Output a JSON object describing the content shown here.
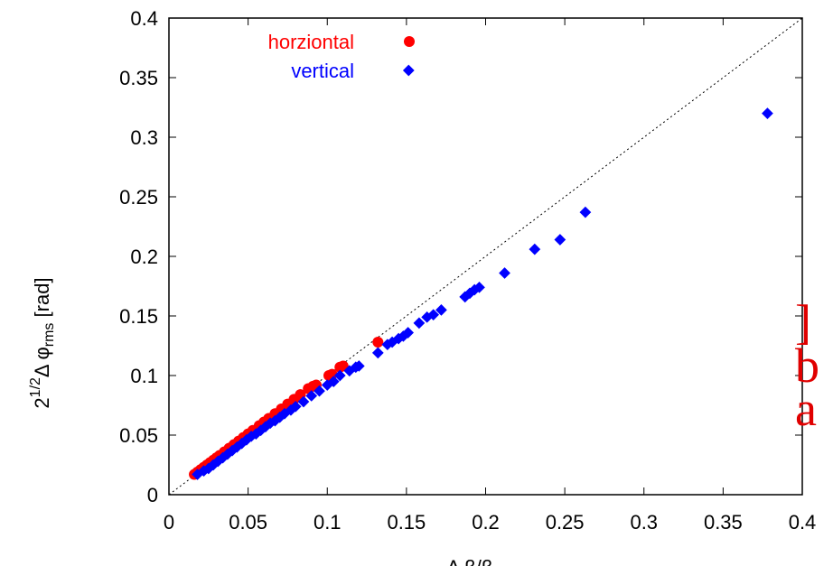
{
  "chart_data": {
    "type": "scatter",
    "xlim": [
      0,
      0.4
    ],
    "ylim": [
      0,
      0.4
    ],
    "x_ticks": [
      "0",
      "0.05",
      "0.1",
      "0.15",
      "0.2",
      "0.25",
      "0.3",
      "0.35",
      "0.4"
    ],
    "y_ticks": [
      "0",
      "0.05",
      "0.1",
      "0.15",
      "0.2",
      "0.25",
      "0.3",
      "0.35",
      "0.4"
    ],
    "xlabel": "Δ β/β",
    "ylabel": {
      "base": "2",
      "sup": "1/2",
      "mid": "Δ φ",
      "sub": "rms",
      "tail": " [rad]"
    },
    "legend_position": "top-left",
    "reference_line": "y = x (dotted)",
    "series": [
      {
        "name": "horziontal",
        "color": "#ff0000",
        "marker": "circle",
        "points": [
          [
            0.016,
            0.017
          ],
          [
            0.018,
            0.019
          ],
          [
            0.02,
            0.021
          ],
          [
            0.022,
            0.023
          ],
          [
            0.024,
            0.025
          ],
          [
            0.026,
            0.027
          ],
          [
            0.028,
            0.029
          ],
          [
            0.03,
            0.031
          ],
          [
            0.032,
            0.033
          ],
          [
            0.035,
            0.036
          ],
          [
            0.038,
            0.039
          ],
          [
            0.041,
            0.042
          ],
          [
            0.044,
            0.045
          ],
          [
            0.047,
            0.048
          ],
          [
            0.05,
            0.051
          ],
          [
            0.053,
            0.054
          ],
          [
            0.057,
            0.058
          ],
          [
            0.06,
            0.061
          ],
          [
            0.063,
            0.064
          ],
          [
            0.067,
            0.068
          ],
          [
            0.071,
            0.072
          ],
          [
            0.075,
            0.076
          ],
          [
            0.079,
            0.08
          ],
          [
            0.083,
            0.084
          ],
          [
            0.088,
            0.089
          ],
          [
            0.091,
            0.091
          ],
          [
            0.093,
            0.092
          ],
          [
            0.101,
            0.1
          ],
          [
            0.103,
            0.101
          ],
          [
            0.108,
            0.107
          ],
          [
            0.11,
            0.108
          ],
          [
            0.132,
            0.128
          ]
        ]
      },
      {
        "name": "vertical",
        "color": "#0000ff",
        "marker": "diamond",
        "points": [
          [
            0.018,
            0.017
          ],
          [
            0.022,
            0.02
          ],
          [
            0.025,
            0.022
          ],
          [
            0.028,
            0.025
          ],
          [
            0.031,
            0.028
          ],
          [
            0.034,
            0.031
          ],
          [
            0.037,
            0.034
          ],
          [
            0.04,
            0.037
          ],
          [
            0.043,
            0.04
          ],
          [
            0.046,
            0.043
          ],
          [
            0.049,
            0.046
          ],
          [
            0.052,
            0.049
          ],
          [
            0.055,
            0.051
          ],
          [
            0.058,
            0.054
          ],
          [
            0.061,
            0.057
          ],
          [
            0.064,
            0.06
          ],
          [
            0.067,
            0.062
          ],
          [
            0.07,
            0.065
          ],
          [
            0.073,
            0.068
          ],
          [
            0.077,
            0.071
          ],
          [
            0.08,
            0.074
          ],
          [
            0.085,
            0.078
          ],
          [
            0.09,
            0.083
          ],
          [
            0.095,
            0.087
          ],
          [
            0.1,
            0.092
          ],
          [
            0.104,
            0.095
          ],
          [
            0.108,
            0.1
          ],
          [
            0.114,
            0.104
          ],
          [
            0.118,
            0.107
          ],
          [
            0.12,
            0.108
          ],
          [
            0.132,
            0.119
          ],
          [
            0.138,
            0.126
          ],
          [
            0.141,
            0.128
          ],
          [
            0.145,
            0.131
          ],
          [
            0.148,
            0.133
          ],
          [
            0.151,
            0.136
          ],
          [
            0.158,
            0.144
          ],
          [
            0.163,
            0.149
          ],
          [
            0.167,
            0.151
          ],
          [
            0.172,
            0.155
          ],
          [
            0.187,
            0.166
          ],
          [
            0.19,
            0.169
          ],
          [
            0.193,
            0.172
          ],
          [
            0.196,
            0.174
          ],
          [
            0.212,
            0.186
          ],
          [
            0.231,
            0.206
          ],
          [
            0.247,
            0.214
          ],
          [
            0.263,
            0.237
          ],
          [
            0.378,
            0.32
          ]
        ]
      }
    ]
  },
  "overlay": {
    "lines": [
      "]",
      "b",
      "a"
    ]
  }
}
